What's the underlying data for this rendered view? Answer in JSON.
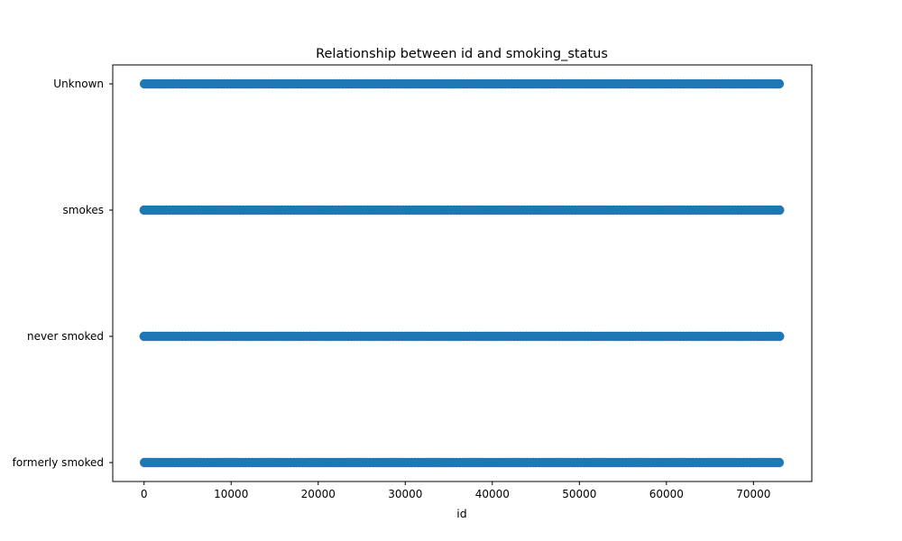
{
  "chart_data": {
    "type": "scatter",
    "title": "Relationship between id and smoking_status",
    "xlabel": "id",
    "ylabel": "",
    "xlim": [
      -3600,
      76700
    ],
    "x_ticks": [
      0,
      10000,
      20000,
      30000,
      40000,
      50000,
      60000,
      70000
    ],
    "categories": [
      "formerly smoked",
      "never smoked",
      "smokes",
      "Unknown"
    ],
    "grid": false,
    "series": [
      {
        "color": "#1f77b4",
        "points": [
          {
            "category": "Unknown",
            "x_range": [
              0,
              73000
            ]
          },
          {
            "category": "smokes",
            "x_range": [
              0,
              73000
            ]
          },
          {
            "category": "never smoked",
            "x_range": [
              0,
              73000
            ]
          },
          {
            "category": "formerly smoked",
            "x_range": [
              0,
              73000
            ]
          }
        ]
      }
    ]
  }
}
